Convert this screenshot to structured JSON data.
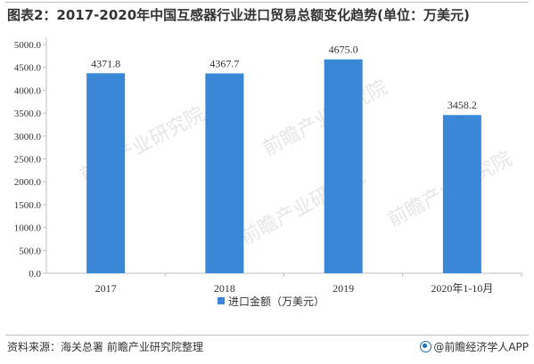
{
  "title": "图表2：2017-2020年中国互感器行业进口贸易总额变化趋势(单位：万美元)",
  "source": "资料来源：海关总署 前瞻产业研究院整理",
  "brand": "@前瞻经济学人APP",
  "watermark": "前瞻产业研究院",
  "chart_data": {
    "type": "bar",
    "title": "图表2：2017-2020年中国互感器行业进口贸易总额变化趋势(单位：万美元)",
    "categories": [
      "2017",
      "2018",
      "2019",
      "2020年1-10月"
    ],
    "series": [
      {
        "name": "进口金额（万美元）",
        "values": [
          4371.8,
          4367.7,
          4675.0,
          3458.2
        ],
        "color": "#3a87d8"
      }
    ],
    "value_labels": [
      "4371.8",
      "4367.7",
      "4675.0",
      "3458.2"
    ],
    "ylim": [
      0,
      5000
    ],
    "yticks": [
      0,
      500,
      1000,
      1500,
      2000,
      2500,
      3000,
      3500,
      4000,
      4500,
      5000
    ],
    "ytick_labels": [
      "0.0",
      "500.0",
      "1000.0",
      "1500.0",
      "2000.0",
      "2500.0",
      "3000.0",
      "3500.0",
      "4000.0",
      "4500.0",
      "5000.0"
    ],
    "grid": false,
    "legend_position": "bottom-center",
    "xlabel": "",
    "ylabel": ""
  }
}
